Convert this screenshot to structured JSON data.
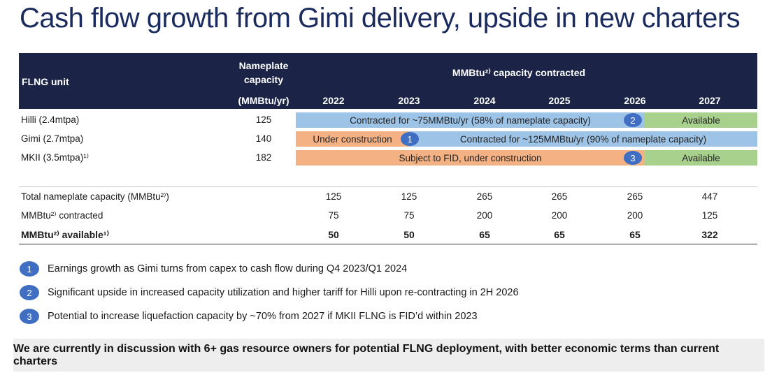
{
  "title": "Cash flow growth from Gimi delivery, upside in new charters",
  "header": {
    "unit_label": "FLNG unit",
    "nameplate_line1": "Nameplate",
    "nameplate_line2": "capacity",
    "nameplate_unit": "(MMBtu/yr)",
    "contracted_label": "MMBtu²⁾ capacity contracted",
    "years": [
      "2022",
      "2023",
      "2024",
      "2025",
      "2026",
      "2027"
    ]
  },
  "units": [
    {
      "name": "Hilli (2.4mtpa)",
      "capacity": "125"
    },
    {
      "name": "Gimi (2.7mtpa)",
      "capacity": "140"
    },
    {
      "name": "MKII (3.5mtpa)¹⁾",
      "capacity": "182"
    }
  ],
  "bars": {
    "hilli_contracted": "Contracted for ~75MMBtu/yr (58% of nameplate capacity)",
    "hilli_available": "Available",
    "gimi_construction": "Under construction",
    "gimi_contracted": "Contracted for ~125MMBtu/yr (90% of nameplate capacity)",
    "mkii_fid": "Subject to FID, under construction",
    "mkii_available": "Available",
    "marker_1": "1",
    "marker_2": "2",
    "marker_3": "3"
  },
  "summary": [
    {
      "label": "Total nameplate capacity (MMBtu²⁾)",
      "values": [
        "125",
        "125",
        "265",
        "265",
        "265",
        "447"
      ],
      "bold": false
    },
    {
      "label": "MMBtu²⁾ contracted",
      "values": [
        "75",
        "75",
        "200",
        "200",
        "200",
        "125"
      ],
      "bold": false
    },
    {
      "label": "MMBtu²⁾ available¹⁾",
      "values": [
        "50",
        "50",
        "65",
        "65",
        "65",
        "322"
      ],
      "bold": true
    }
  ],
  "footnotes": [
    {
      "num": "1",
      "text": "Earnings growth as Gimi turns from capex to cash flow during Q4 2023/Q1 2024"
    },
    {
      "num": "2",
      "text": "Significant upside in increased capacity utilization and higher tariff for Hilli upon re-contracting in 2H 2026"
    },
    {
      "num": "3",
      "text": "Potential to increase liquefaction capacity by ~70% from 2027 if MKII FLNG is FID’d within 2023"
    }
  ],
  "banner": "We are currently in discussion with 6+ gas resource owners for potential FLNG deployment, with better economic terms than current charters",
  "colors": {
    "navy": "#1b2447",
    "blue_bar": "#9dc3e6",
    "orange_bar": "#f4b183",
    "green_bar": "#a9d18e",
    "marker": "#3f6ec2"
  }
}
